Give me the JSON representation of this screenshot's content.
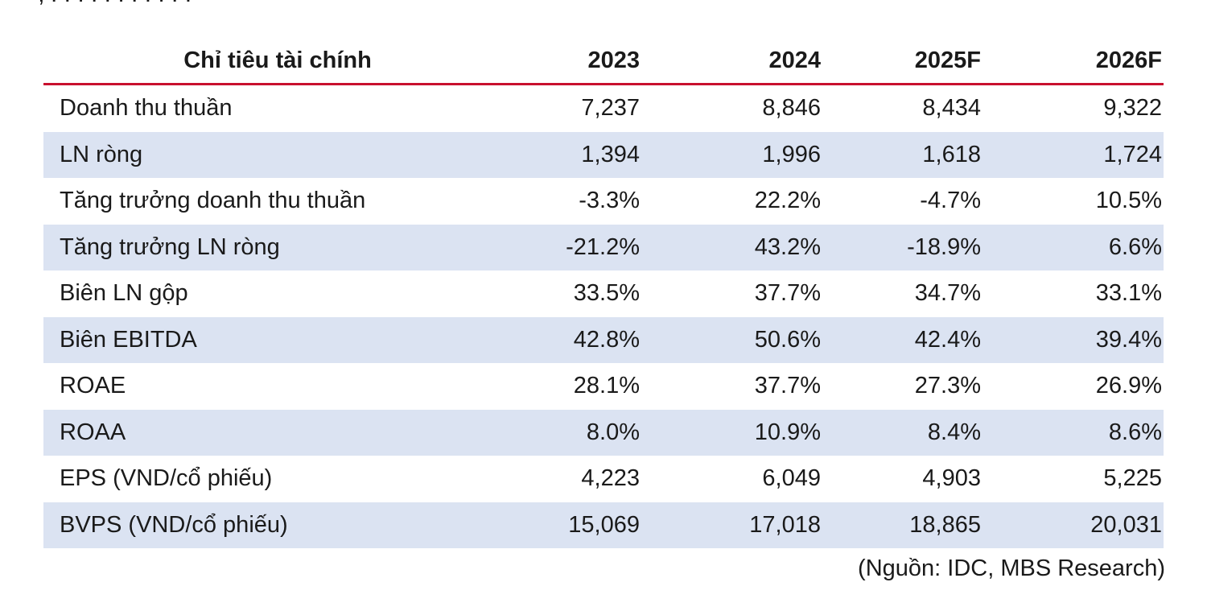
{
  "table": {
    "headers": [
      "Chỉ tiêu tài chính",
      "2023",
      "2024",
      "2025F",
      "2026F"
    ],
    "rows": [
      {
        "label": "Doanh thu thuần",
        "values": [
          "7,237",
          "8,846",
          "8,434",
          "9,322"
        ]
      },
      {
        "label": "LN ròng",
        "values": [
          "1,394",
          "1,996",
          "1,618",
          "1,724"
        ]
      },
      {
        "label": "Tăng trưởng doanh thu thuần",
        "values": [
          "-3.3%",
          "22.2%",
          "-4.7%",
          "10.5%"
        ]
      },
      {
        "label": "Tăng trưởng LN ròng",
        "values": [
          "-21.2%",
          "43.2%",
          "-18.9%",
          "6.6%"
        ]
      },
      {
        "label": "Biên LN gộp",
        "values": [
          "33.5%",
          "37.7%",
          "34.7%",
          "33.1%"
        ]
      },
      {
        "label": "Biên EBITDA",
        "values": [
          "42.8%",
          "50.6%",
          "42.4%",
          "39.4%"
        ]
      },
      {
        "label": "ROAE",
        "values": [
          "28.1%",
          "37.7%",
          "27.3%",
          "26.9%"
        ]
      },
      {
        "label": "ROAA",
        "values": [
          "8.0%",
          "10.9%",
          "8.4%",
          "8.6%"
        ]
      },
      {
        "label": "EPS (VND/cổ phiếu)",
        "values": [
          "4,223",
          "6,049",
          "4,903",
          "5,225"
        ]
      },
      {
        "label": "BVPS (VND/cổ phiếu)",
        "values": [
          "15,069",
          "17,018",
          "18,865",
          "20,031"
        ]
      }
    ]
  },
  "source_note": "(Nguồn: IDC, MBS Research)",
  "colors": {
    "header_rule": "#c8102e",
    "row_shade": "#dbe3f2",
    "text": "#1a1a1a"
  }
}
